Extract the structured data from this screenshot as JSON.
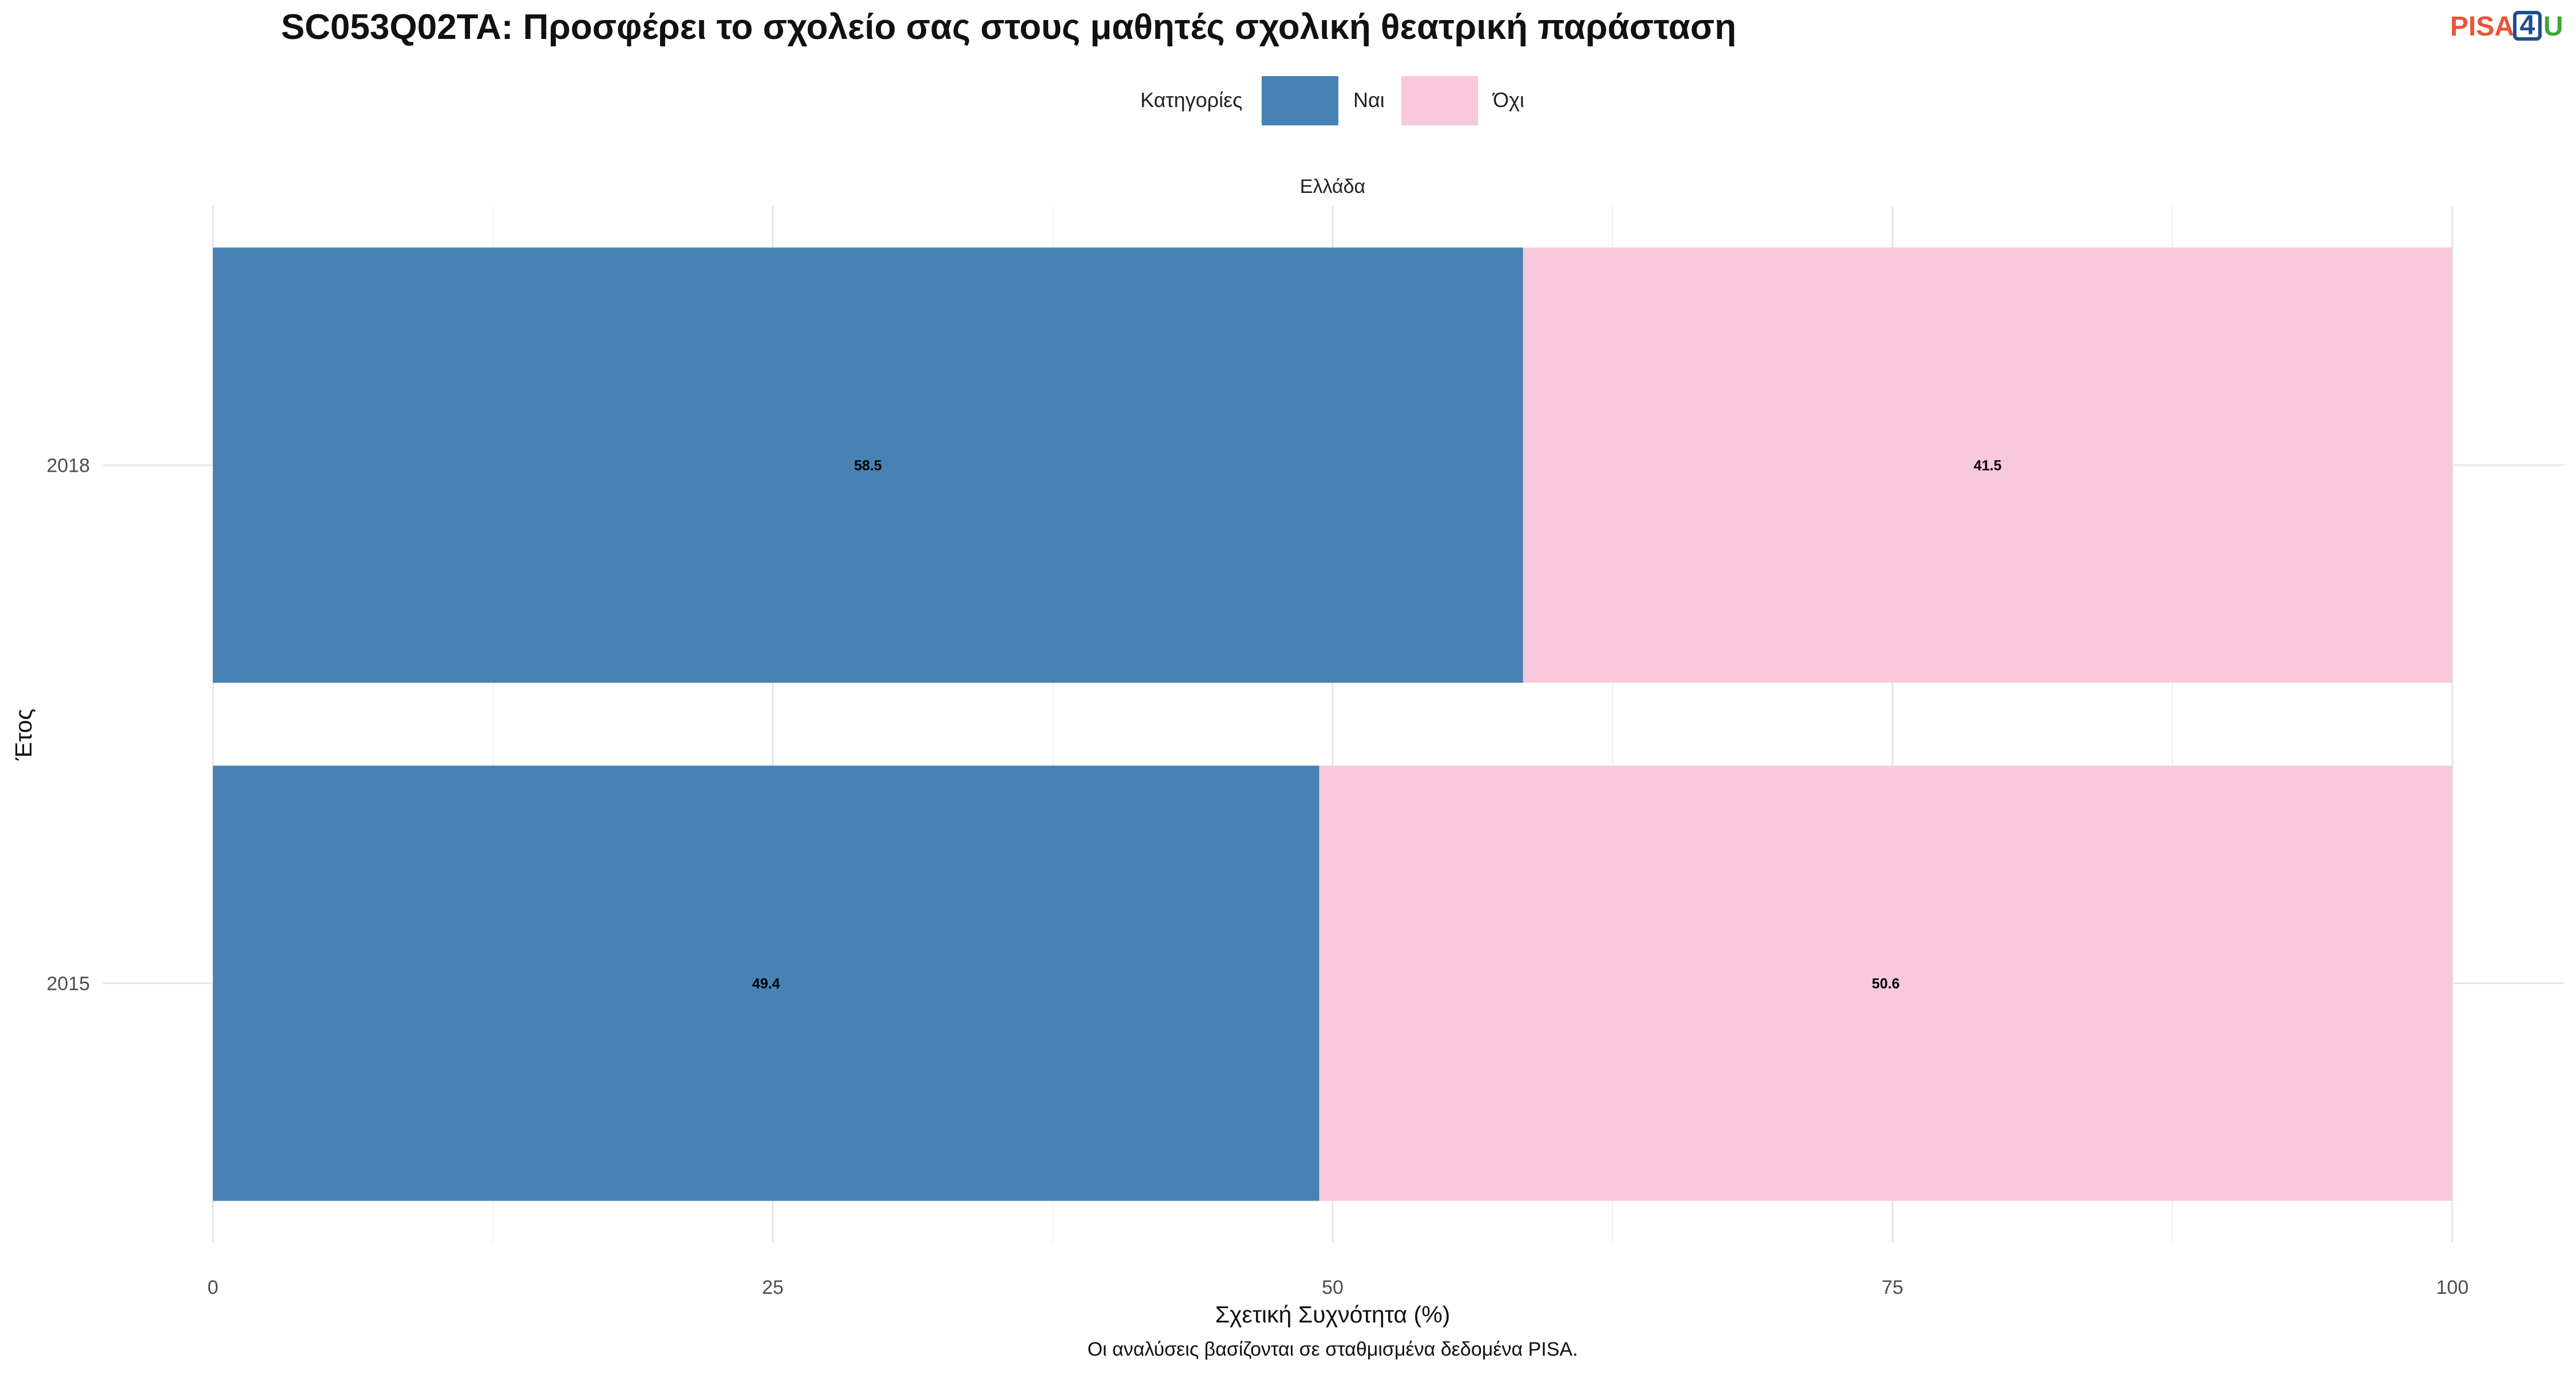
{
  "chart_data": {
    "type": "bar",
    "orientation": "horizontal",
    "stacked": true,
    "title": "SC053Q02TA: Προσφέρει το σχολείο σας στους μαθητές σχολική θεατρική παράσταση",
    "facet": "Ελλάδα",
    "xlabel": "Σχετική Συχνότητα (%)",
    "ylabel": "Έτος",
    "caption": "Οι αναλύσεις βασίζονται σε σταθμισμένα δεδομένα PISA.",
    "categories": [
      "2018",
      "2015"
    ],
    "series": [
      {
        "name": "Ναι",
        "color": "#4682B4",
        "values": [
          58.5,
          49.4
        ]
      },
      {
        "name": "Όχι",
        "color": "#F8C8DC",
        "values": [
          41.5,
          50.6
        ]
      }
    ],
    "xlim": [
      0,
      100
    ],
    "xticks": [
      0,
      25,
      50,
      75,
      100
    ],
    "grid": true,
    "legend": {
      "title": "Κατηγορίες",
      "position": "top"
    }
  },
  "logo": {
    "part1": "PISA",
    "part2": "4",
    "part3": "U"
  }
}
